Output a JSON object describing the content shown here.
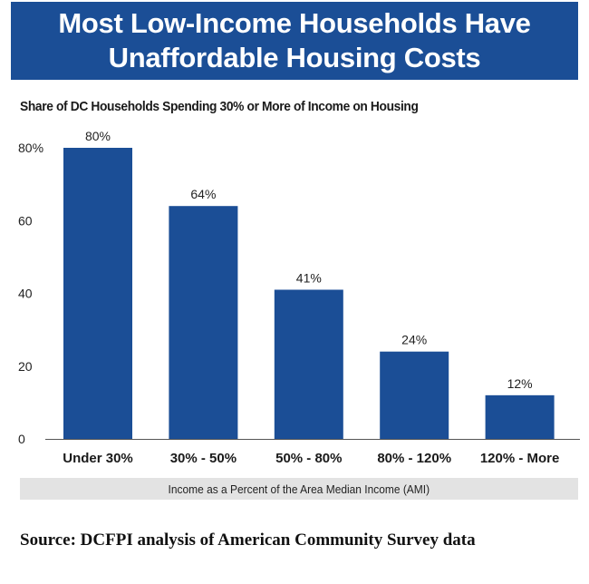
{
  "title": {
    "line1": "Most Low-Income Households Have",
    "line2": "Unaffordable Housing Costs"
  },
  "source": "Source: DCFPI analysis of American Community  Survey data",
  "colors": {
    "banner": "#1b4e96",
    "bar": "#1b4e96",
    "xlabel_background": "#e3e3e3"
  },
  "chart_data": {
    "type": "bar",
    "title": "Share of DC Households Spending 30% or More of Income on Housing",
    "xlabel": "Income as a Percent of the Area Median Income (AMI)",
    "ylabel": "",
    "categories": [
      "Under 30%",
      "30% - 50%",
      "50% - 80%",
      "80% - 120%",
      "120% - More"
    ],
    "values": [
      80,
      64,
      41,
      24,
      12
    ],
    "data_labels": [
      "80%",
      "64%",
      "41%",
      "24%",
      "12%"
    ],
    "ylim": [
      0,
      80
    ],
    "yticks": [
      0,
      20,
      40,
      60,
      80
    ],
    "ytick_labels": [
      "0",
      "20",
      "40",
      "60",
      "80%"
    ],
    "grid": false,
    "legend": "none"
  }
}
